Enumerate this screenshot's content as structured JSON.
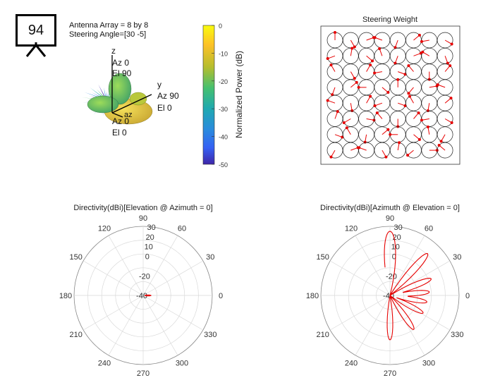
{
  "badge": {
    "number": "94",
    "icon": "presentation-board-icon"
  },
  "info": {
    "array_label": "Antenna Array = 8 by 8",
    "steering_label": "Steering Angle=[30 -5]"
  },
  "pattern3d": {
    "z_label": "z",
    "z_az": "Az 0",
    "z_el": "El 90",
    "y_label": "y",
    "y_az": "Az 90",
    "y_el": "El 0",
    "x_label": "az",
    "x_az": "Az 0",
    "x_el": "El 0"
  },
  "colorbar": {
    "label": "Normalized Power (dB)",
    "ticks": [
      "0",
      "-10",
      "-20",
      "-30",
      "-40",
      "-50"
    ],
    "tick_values": [
      0,
      -10,
      -20,
      -30,
      -40,
      -50
    ],
    "colors": [
      "#f9fb0e",
      "#fdc127",
      "#b5bd2e",
      "#46c06f",
      "#1fa9b1",
      "#2a8bdd",
      "#3561f4",
      "#3e26a8"
    ]
  },
  "chart_data": [
    {
      "type": "scatter",
      "title": "Steering Weight",
      "rows": 8,
      "cols": 8,
      "weight_phase_deg": [
        [
          90,
          -60,
          20,
          160,
          -110,
          40,
          190,
          -30
        ],
        [
          200,
          80,
          -40,
          110,
          250,
          20,
          150,
          290
        ],
        [
          120,
          300,
          60,
          190,
          -20,
          130,
          270,
          50
        ],
        [
          250,
          40,
          180,
          320,
          90,
          230,
          10,
          160
        ],
        [
          160,
          280,
          60,
          200,
          340,
          120,
          260,
          40
        ],
        [
          70,
          210,
          350,
          130,
          270,
          50,
          190,
          330
        ],
        [
          340,
          120,
          260,
          40,
          180,
          320,
          100,
          240
        ],
        [
          240,
          20,
          160,
          300,
          80,
          220,
          0,
          140
        ]
      ]
    },
    {
      "type": "line",
      "title": "Directivity(dBi)[Elevation @ Azimuth = 0]",
      "angle_ticks": [
        "0",
        "30",
        "60",
        "90",
        "120",
        "150",
        "180",
        "210",
        "240",
        "270",
        "300",
        "330"
      ],
      "radial_ticks": [
        "30",
        "20",
        "10",
        "0",
        "-20",
        "-40"
      ],
      "rlim": [
        -40,
        30
      ],
      "series": [
        {
          "theta_deg": [
            -8,
            -4,
            0,
            4,
            8
          ],
          "r_dbi": [
            -40,
            -36,
            -34,
            -36,
            -40
          ]
        }
      ]
    },
    {
      "type": "line",
      "title": "Directivity(dBi)[Azimuth @ Elevation = 0]",
      "angle_ticks": [
        "0",
        "30",
        "60",
        "90",
        "120",
        "150",
        "180",
        "210",
        "240",
        "270",
        "300",
        "330"
      ],
      "radial_ticks": [
        "30",
        "20",
        "10",
        "0",
        "-20",
        "-40"
      ],
      "rlim": [
        -40,
        30
      ],
      "series": [
        {
          "lobes": [
            {
              "center_deg": 90,
              "peak_dbi": 25
            },
            {
              "center_deg": 48,
              "peak_dbi": 17
            },
            {
              "center_deg": 22,
              "peak_dbi": 5
            },
            {
              "center_deg": 5,
              "peak_dbi": 0
            },
            {
              "center_deg": -10,
              "peak_dbi": -2
            },
            {
              "center_deg": -28,
              "peak_dbi": -2
            },
            {
              "center_deg": -55,
              "peak_dbi": 2
            },
            {
              "center_deg": -90,
              "peak_dbi": 5
            }
          ]
        }
      ]
    }
  ]
}
